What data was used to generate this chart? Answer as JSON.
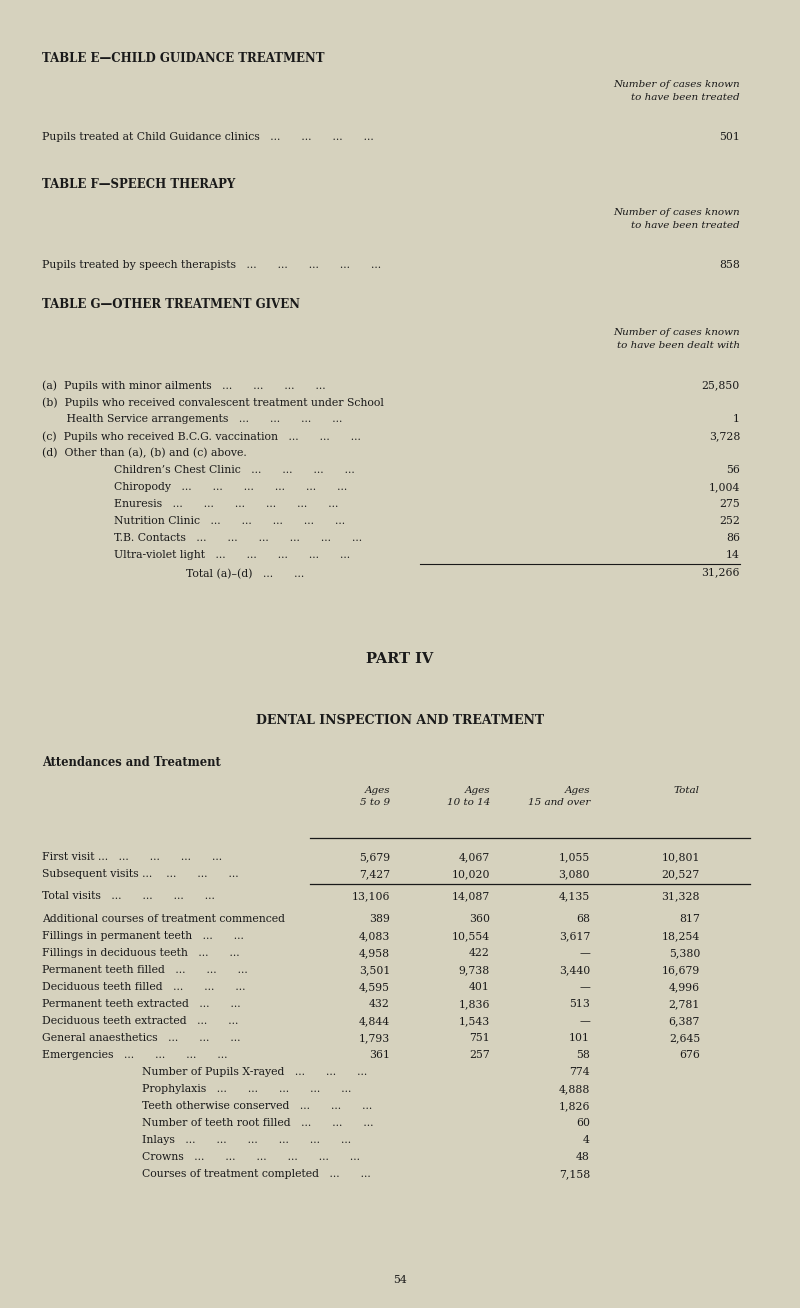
{
  "bg_color": "#d6d2be",
  "text_color": "#1a1a1a",
  "page_number": "54",
  "table_e_title": "TABLE E—CHILD GUIDANCE TREATMENT",
  "table_e_col_header": "Number of cases known\nto have been treated",
  "table_e_row": "Pupils treated at Child Guidance clinics   ...      ...      ...      ...",
  "table_e_value": "501",
  "table_f_title": "TABLE F—SPEECH THERAPY",
  "table_f_col_header": "Number of cases known\nto have been treated",
  "table_f_row": "Pupils treated by speech therapists   ...      ...      ...      ...      ...",
  "table_f_value": "858",
  "table_g_title": "TABLE G—OTHER TREATMENT GIVEN",
  "table_g_col_header": "Number of cases known\nto have been dealt with",
  "table_g_rows": [
    {
      "label": "(a)  Pupils with minor ailments   ...      ...      ...      ...",
      "indent": 0,
      "value": "25,850"
    },
    {
      "label": "(b)  Pupils who received convalescent treatment under School",
      "indent": 0,
      "value": ""
    },
    {
      "label": "       Health Service arrangements   ...      ...      ...      ...",
      "indent": 0,
      "value": "1"
    },
    {
      "label": "(c)  Pupils who received B.C.G. vaccination   ...      ...      ...",
      "indent": 0,
      "value": "3,728"
    },
    {
      "label": "(d)  Other than (a), (b) and (c) above.",
      "indent": 0,
      "value": ""
    },
    {
      "label": "Children’s Chest Clinic   ...      ...      ...      ...",
      "indent": 1,
      "value": "56"
    },
    {
      "label": "Chiropody   ...      ...      ...      ...      ...      ...",
      "indent": 1,
      "value": "1,004"
    },
    {
      "label": "Enuresis   ...      ...      ...      ...      ...      ...",
      "indent": 1,
      "value": "275"
    },
    {
      "label": "Nutrition Clinic   ...      ...      ...      ...      ...",
      "indent": 1,
      "value": "252"
    },
    {
      "label": "T.B. Contacts   ...      ...      ...      ...      ...      ...",
      "indent": 1,
      "value": "86"
    },
    {
      "label": "Ultra-violet light   ...      ...      ...      ...      ...",
      "indent": 1,
      "value": "14"
    },
    {
      "label": "Total (a)–(d)   ...      ...",
      "indent": 2,
      "value": "31,266"
    }
  ],
  "part_iv_title": "PART IV",
  "dental_title": "DENTAL INSPECTION AND TREATMENT",
  "attendances_title": "Attendances and Treatment",
  "col_headers": [
    "Ages\n5 to 9",
    "Ages\n10 to 14",
    "Ages\n15 and over",
    "Total"
  ],
  "dental_rows": [
    {
      "label": "First visit ...   ...      ...      ...      ...",
      "vals": [
        "5,679",
        "4,067",
        "1,055",
        "10,801"
      ],
      "gap_after": false
    },
    {
      "label": "Subsequent visits ...    ...      ...      ...",
      "vals": [
        "7,427",
        "10,020",
        "3,080",
        "20,527"
      ],
      "gap_after": false
    },
    {
      "label": "Total visits   ...      ...      ...      ...",
      "vals": [
        "13,106",
        "14,087",
        "4,135",
        "31,328"
      ],
      "gap_after": true
    },
    {
      "label": "Additional courses of treatment commenced",
      "vals": [
        "389",
        "360",
        "68",
        "817"
      ],
      "gap_after": false
    },
    {
      "label": "Fillings in permanent teeth   ...      ...",
      "vals": [
        "4,083",
        "10,554",
        "3,617",
        "18,254"
      ],
      "gap_after": false
    },
    {
      "label": "Fillings in deciduous teeth   ...      ...",
      "vals": [
        "4,958",
        "422",
        "—",
        "5,380"
      ],
      "gap_after": false
    },
    {
      "label": "Permanent teeth filled   ...      ...      ...",
      "vals": [
        "3,501",
        "9,738",
        "3,440",
        "16,679"
      ],
      "gap_after": false
    },
    {
      "label": "Deciduous teeth filled   ...      ...      ...",
      "vals": [
        "4,595",
        "401",
        "—",
        "4,996"
      ],
      "gap_after": false
    },
    {
      "label": "Permanent teeth extracted   ...      ...",
      "vals": [
        "432",
        "1,836",
        "513",
        "2,781"
      ],
      "gap_after": false
    },
    {
      "label": "Deciduous teeth extracted   ...      ...",
      "vals": [
        "4,844",
        "1,543",
        "—",
        "6,387"
      ],
      "gap_after": false
    },
    {
      "label": "General anaesthetics   ...      ...      ...",
      "vals": [
        "1,793",
        "751",
        "101",
        "2,645"
      ],
      "gap_after": false
    },
    {
      "label": "Emergencies   ...      ...      ...      ...",
      "vals": [
        "361",
        "257",
        "58",
        "676"
      ],
      "gap_after": false
    }
  ],
  "extra_rows": [
    {
      "label": "Number of Pupils X-rayed   ...      ...      ...",
      "val": "774"
    },
    {
      "label": "Prophylaxis   ...      ...      ...      ...      ...",
      "val": "4,888"
    },
    {
      "label": "Teeth otherwise conserved   ...      ...      ...",
      "val": "1,826"
    },
    {
      "label": "Number of teeth root filled   ...      ...      ...",
      "val": "60"
    },
    {
      "label": "Inlays   ...      ...      ...      ...      ...      ...",
      "val": "4"
    },
    {
      "label": "Crowns   ...      ...      ...      ...      ...      ...",
      "val": "48"
    },
    {
      "label": "Courses of treatment completed   ...      ...",
      "val": "7,158"
    }
  ]
}
